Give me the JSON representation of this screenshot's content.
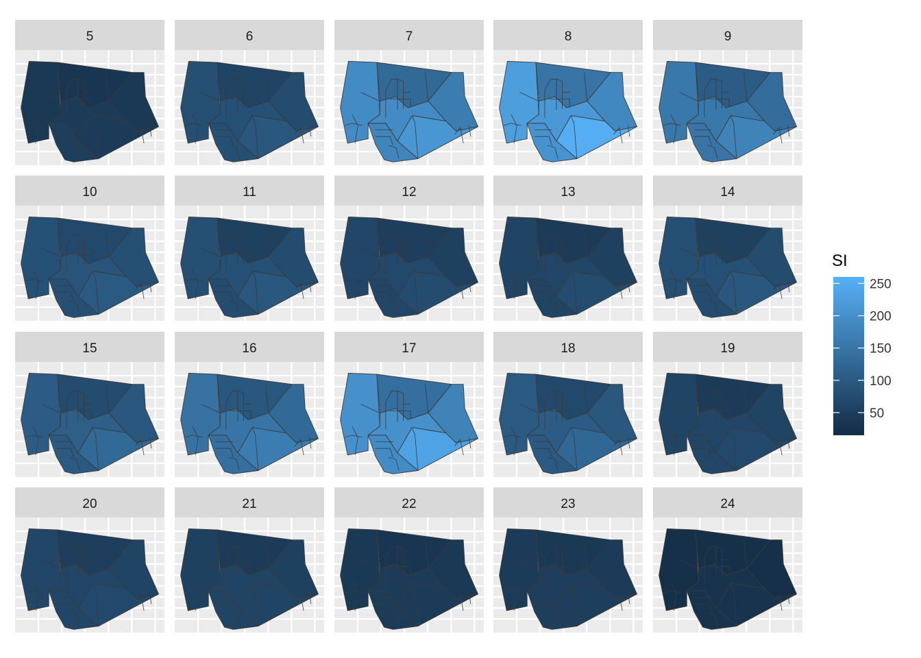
{
  "chart_data": {
    "type": "heatmap",
    "subtype": "faceted choropleth map",
    "facet_variable_values": [
      "5",
      "6",
      "7",
      "8",
      "9",
      "10",
      "11",
      "12",
      "13",
      "14",
      "15",
      "16",
      "17",
      "18",
      "19",
      "20",
      "21",
      "22",
      "23",
      "24"
    ],
    "legend": {
      "title": "SI",
      "position": "right",
      "ticks": [
        50,
        100,
        150,
        200,
        250
      ],
      "range": [
        15,
        260
      ],
      "color_low": "#132B43",
      "color_high": "#56B1F7"
    },
    "grid": true,
    "panel_background": "#EBEBEB",
    "strip_background": "#D9D9D9",
    "region_border_color": "#3A3A3A",
    "facets": [
      {
        "label": "5",
        "values": {
          "west": 40,
          "northeast": 35,
          "east": 40,
          "south": 50,
          "southeast": 45,
          "center": 45
        }
      },
      {
        "label": "6",
        "values": {
          "west": 80,
          "northeast": 60,
          "east": 75,
          "south": 80,
          "southeast": 95,
          "center": 85
        }
      },
      {
        "label": "7",
        "values": {
          "west": 190,
          "northeast": 130,
          "east": 165,
          "south": 180,
          "southeast": 210,
          "center": 190
        }
      },
      {
        "label": "8",
        "values": {
          "west": 225,
          "northeast": 150,
          "east": 185,
          "south": 205,
          "southeast": 255,
          "center": 215
        }
      },
      {
        "label": "9",
        "values": {
          "west": 155,
          "northeast": 105,
          "east": 135,
          "south": 150,
          "southeast": 175,
          "center": 155
        }
      },
      {
        "label": "10",
        "values": {
          "west": 85,
          "northeast": 70,
          "east": 80,
          "south": 80,
          "southeast": 100,
          "center": 90
        }
      },
      {
        "label": "11",
        "values": {
          "west": 80,
          "northeast": 55,
          "east": 75,
          "south": 75,
          "southeast": 95,
          "center": 85
        }
      },
      {
        "label": "12",
        "values": {
          "west": 65,
          "northeast": 50,
          "east": 55,
          "south": 65,
          "southeast": 75,
          "center": 70
        }
      },
      {
        "label": "13",
        "values": {
          "west": 60,
          "northeast": 45,
          "east": 55,
          "south": 60,
          "southeast": 75,
          "center": 65
        }
      },
      {
        "label": "14",
        "values": {
          "west": 80,
          "northeast": 55,
          "east": 75,
          "south": 75,
          "southeast": 95,
          "center": 85
        }
      },
      {
        "label": "15",
        "values": {
          "west": 105,
          "northeast": 75,
          "east": 95,
          "south": 100,
          "southeast": 130,
          "center": 110
        }
      },
      {
        "label": "16",
        "values": {
          "west": 145,
          "northeast": 95,
          "east": 130,
          "south": 140,
          "southeast": 165,
          "center": 150
        }
      },
      {
        "label": "17",
        "values": {
          "west": 200,
          "northeast": 140,
          "east": 175,
          "south": 190,
          "southeast": 235,
          "center": 200
        }
      },
      {
        "label": "18",
        "values": {
          "west": 100,
          "northeast": 70,
          "east": 95,
          "south": 100,
          "southeast": 125,
          "center": 105
        }
      },
      {
        "label": "19",
        "values": {
          "west": 60,
          "northeast": 45,
          "east": 60,
          "south": 65,
          "southeast": 70,
          "center": 65
        }
      },
      {
        "label": "20",
        "values": {
          "west": 65,
          "northeast": 50,
          "east": 60,
          "south": 65,
          "southeast": 70,
          "center": 65
        }
      },
      {
        "label": "21",
        "values": {
          "west": 55,
          "northeast": 45,
          "east": 55,
          "south": 60,
          "southeast": 60,
          "center": 60
        }
      },
      {
        "label": "22",
        "values": {
          "west": 40,
          "northeast": 35,
          "east": 40,
          "south": 45,
          "southeast": 45,
          "center": 45
        }
      },
      {
        "label": "23",
        "values": {
          "west": 45,
          "northeast": 40,
          "east": 45,
          "south": 50,
          "southeast": 50,
          "center": 50
        }
      },
      {
        "label": "24",
        "values": {
          "west": 25,
          "northeast": 25,
          "east": 25,
          "south": 30,
          "southeast": 30,
          "center": 30
        }
      }
    ]
  }
}
